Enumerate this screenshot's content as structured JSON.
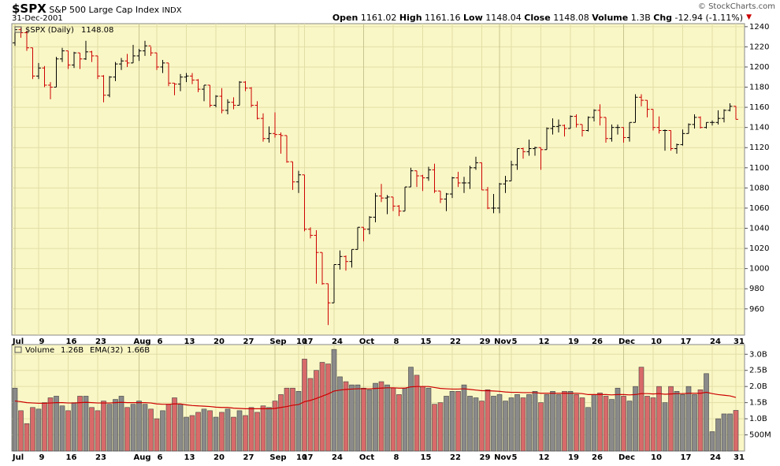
{
  "header": {
    "title": "$SPX",
    "subtitle": "S&P 500 Large Cap Index",
    "exchange": "INDX",
    "date": "31-Dec-2001",
    "open_label": "Open",
    "high_label": "High",
    "low_label": "Low",
    "close_label": "Close",
    "volume_label": "Volume",
    "volume": "1.3B",
    "chg_label": "Chg",
    "chg": "-12.94",
    "chg_pct": "(-1.11%)",
    "copyright": "© StockCharts.com"
  },
  "chart_data": [
    {
      "type": "ohlc",
      "name": "$SPX (Daily)",
      "up_color": "#000000",
      "down_color": "#cc0000",
      "grid": true,
      "categories": [
        "Jul",
        null,
        null,
        null,
        "9",
        null,
        null,
        null,
        null,
        "16",
        null,
        null,
        null,
        null,
        "23",
        null,
        null,
        null,
        null,
        null,
        null,
        "Aug",
        null,
        null,
        "6",
        null,
        null,
        null,
        null,
        "13",
        null,
        null,
        null,
        null,
        "20",
        null,
        null,
        null,
        null,
        "27",
        null,
        null,
        null,
        null,
        "Sep",
        null,
        null,
        null,
        "10",
        "17",
        null,
        null,
        null,
        null,
        "24",
        null,
        null,
        null,
        null,
        "Oct",
        null,
        null,
        null,
        null,
        "8",
        null,
        null,
        null,
        null,
        "15",
        null,
        null,
        null,
        null,
        "22",
        null,
        null,
        null,
        null,
        "29",
        null,
        null,
        "Nov",
        null,
        "5",
        null,
        null,
        null,
        null,
        "12",
        null,
        null,
        null,
        null,
        "19",
        null,
        null,
        null,
        "26",
        null,
        null,
        null,
        null,
        "Dec",
        null,
        null,
        null,
        null,
        "10",
        null,
        null,
        null,
        null,
        "17",
        null,
        null,
        null,
        null,
        "24",
        null,
        null,
        null,
        "31"
      ],
      "open": [
        1224,
        1237,
        1234,
        1219,
        1191,
        1199,
        1182,
        1180,
        1208,
        1216,
        1202,
        1214,
        1208,
        1215,
        1211,
        1191,
        1172,
        1190,
        1203,
        1206,
        1204,
        1211,
        1216,
        1221,
        1214,
        1200,
        1204,
        1184,
        1183,
        1190,
        1191,
        1187,
        1178,
        1182,
        1162,
        1171,
        1157,
        1165,
        1162,
        1185,
        1179,
        1162,
        1149,
        1129,
        1134,
        1133,
        1132,
        1106,
        1086,
        1093,
        1039,
        1033,
        1016,
        985,
        966,
        1004,
        1012,
        1007,
        1019,
        1041,
        1039,
        1051,
        1072,
        1070,
        1071,
        1062,
        1057,
        1081,
        1097,
        1092,
        1090,
        1098,
        1077,
        1069,
        1074,
        1090,
        1085,
        1085,
        1100,
        1105,
        1078,
        1060,
        1060,
        1084,
        1087,
        1103,
        1119,
        1116,
        1119,
        1120,
        1118,
        1139,
        1141,
        1142,
        1139,
        1151,
        1143,
        1137,
        1150,
        1157,
        1150,
        1129,
        1140,
        1140,
        1130,
        1145,
        1170,
        1167,
        1158,
        1140,
        1137,
        1137,
        1119,
        1123,
        1134,
        1143,
        1150,
        1140,
        1145,
        1145,
        1149,
        1157,
        1161.02
      ],
      "high": [
        1240,
        1239,
        1236,
        1219,
        1204,
        1201,
        1185,
        1210,
        1219,
        1216,
        1215,
        1214,
        1226,
        1216,
        1211,
        1192,
        1191,
        1205,
        1209,
        1213,
        1222,
        1218,
        1226,
        1220,
        1214,
        1207,
        1204,
        1184,
        1193,
        1194,
        1194,
        1188,
        1182,
        1182,
        1172,
        1179,
        1168,
        1170,
        1186,
        1186,
        1180,
        1166,
        1154,
        1141,
        1155,
        1135,
        1132,
        1106,
        1097,
        1093,
        1041,
        1038,
        1016,
        985,
        1004,
        1018,
        1013,
        1019,
        1041,
        1041,
        1052,
        1075,
        1084,
        1073,
        1071,
        1063,
        1081,
        1100,
        1097,
        1093,
        1101,
        1104,
        1077,
        1075,
        1091,
        1096,
        1091,
        1102,
        1111,
        1105,
        1081,
        1074,
        1085,
        1092,
        1107,
        1119,
        1120,
        1128,
        1121,
        1120,
        1140,
        1149,
        1148,
        1143,
        1152,
        1153,
        1143,
        1151,
        1158,
        1163,
        1150,
        1143,
        1143,
        1140,
        1145,
        1173,
        1173,
        1167,
        1158,
        1151,
        1138,
        1137,
        1124,
        1138,
        1144,
        1153,
        1151,
        1145,
        1147,
        1157,
        1158,
        1164,
        1161.16
      ],
      "low": [
        1221,
        1229,
        1216,
        1188,
        1188,
        1180,
        1168,
        1180,
        1205,
        1198,
        1199,
        1198,
        1207,
        1205,
        1188,
        1165,
        1170,
        1186,
        1197,
        1200,
        1204,
        1206,
        1211,
        1211,
        1197,
        1194,
        1181,
        1172,
        1176,
        1185,
        1183,
        1175,
        1166,
        1160,
        1160,
        1154,
        1153,
        1158,
        1162,
        1176,
        1160,
        1148,
        1126,
        1125,
        1130,
        1114,
        1105,
        1078,
        1075,
        1037,
        1030,
        985,
        984,
        944,
        966,
        999,
        998,
        1001,
        1019,
        1027,
        1034,
        1046,
        1066,
        1054,
        1057,
        1052,
        1057,
        1081,
        1081,
        1077,
        1087,
        1075,
        1065,
        1057,
        1070,
        1081,
        1075,
        1079,
        1098,
        1078,
        1059,
        1055,
        1055,
        1075,
        1087,
        1098,
        1109,
        1112,
        1112,
        1098,
        1118,
        1133,
        1135,
        1131,
        1139,
        1140,
        1131,
        1136,
        1146,
        1142,
        1125,
        1126,
        1133,
        1125,
        1126,
        1145,
        1161,
        1150,
        1137,
        1134,
        1117,
        1117,
        1114,
        1122,
        1134,
        1139,
        1139,
        1139,
        1142,
        1143,
        1145,
        1156,
        1148.04
      ],
      "close": [
        1237,
        1234,
        1219,
        1191,
        1199,
        1182,
        1180,
        1208,
        1216,
        1202,
        1214,
        1208,
        1215,
        1211,
        1191,
        1172,
        1190,
        1203,
        1206,
        1204,
        1211,
        1216,
        1221,
        1214,
        1200,
        1204,
        1184,
        1183,
        1190,
        1191,
        1187,
        1178,
        1182,
        1162,
        1171,
        1157,
        1165,
        1162,
        1185,
        1179,
        1162,
        1149,
        1129,
        1134,
        1133,
        1132,
        1106,
        1086,
        1093,
        1039,
        1033,
        1016,
        985,
        966,
        1004,
        1012,
        1007,
        1019,
        1041,
        1039,
        1051,
        1072,
        1070,
        1071,
        1062,
        1057,
        1081,
        1097,
        1092,
        1090,
        1098,
        1077,
        1069,
        1074,
        1090,
        1085,
        1085,
        1100,
        1105,
        1078,
        1060,
        1060,
        1084,
        1087,
        1103,
        1119,
        1116,
        1119,
        1120,
        1118,
        1139,
        1141,
        1142,
        1139,
        1151,
        1143,
        1137,
        1150,
        1157,
        1150,
        1129,
        1140,
        1140,
        1130,
        1145,
        1170,
        1167,
        1158,
        1140,
        1137,
        1137,
        1119,
        1123,
        1134,
        1143,
        1150,
        1140,
        1145,
        1145,
        1149,
        1157,
        1161,
        1148.08
      ],
      "ylim": [
        934,
        1243
      ],
      "yticks": [
        960,
        980,
        1000,
        1020,
        1040,
        1060,
        1080,
        1100,
        1120,
        1140,
        1160,
        1180,
        1200,
        1220,
        1240
      ]
    },
    {
      "type": "bar",
      "name": "Volume",
      "last_label": "1.26B",
      "up_color": "#8a8a8a",
      "down_color": "#d86a6a",
      "grid": true,
      "categories": [
        "Jul",
        null,
        null,
        null,
        "9",
        null,
        null,
        null,
        null,
        "16",
        null,
        null,
        null,
        null,
        "23",
        null,
        null,
        null,
        null,
        null,
        null,
        "Aug",
        null,
        null,
        "6",
        null,
        null,
        null,
        null,
        "13",
        null,
        null,
        null,
        null,
        "20",
        null,
        null,
        null,
        null,
        "27",
        null,
        null,
        null,
        null,
        "Sep",
        null,
        null,
        null,
        "10",
        "17",
        null,
        null,
        null,
        null,
        "24",
        null,
        null,
        null,
        null,
        "Oct",
        null,
        null,
        null,
        null,
        "8",
        null,
        null,
        null,
        null,
        "15",
        null,
        null,
        null,
        null,
        "22",
        null,
        null,
        null,
        null,
        "29",
        null,
        null,
        "Nov",
        null,
        "5",
        null,
        null,
        null,
        null,
        "12",
        null,
        null,
        null,
        null,
        "19",
        null,
        null,
        null,
        "26",
        null,
        null,
        null,
        null,
        "Dec",
        null,
        null,
        null,
        null,
        "10",
        null,
        null,
        null,
        null,
        "17",
        null,
        null,
        null,
        null,
        "24",
        null,
        null,
        null,
        "31"
      ],
      "values": [
        1.95,
        1.25,
        0.85,
        1.35,
        1.3,
        1.5,
        1.65,
        1.7,
        1.4,
        1.25,
        1.5,
        1.7,
        1.7,
        1.35,
        1.25,
        1.55,
        1.45,
        1.6,
        1.7,
        1.35,
        1.45,
        1.55,
        1.45,
        1.3,
        1.0,
        1.25,
        1.45,
        1.65,
        1.45,
        1.05,
        1.1,
        1.2,
        1.3,
        1.25,
        1.05,
        1.2,
        1.3,
        1.05,
        1.25,
        1.1,
        1.35,
        1.2,
        1.4,
        1.35,
        1.55,
        1.75,
        1.95,
        1.95,
        1.85,
        2.85,
        2.25,
        2.5,
        2.75,
        2.7,
        3.15,
        2.3,
        2.15,
        2.05,
        2.05,
        1.95,
        1.9,
        2.1,
        2.15,
        2.05,
        1.95,
        1.75,
        1.95,
        2.6,
        2.35,
        2.0,
        1.95,
        1.45,
        1.5,
        1.7,
        1.85,
        1.85,
        2.05,
        1.7,
        1.65,
        1.55,
        1.9,
        1.7,
        1.75,
        1.55,
        1.65,
        1.75,
        1.65,
        1.75,
        1.85,
        1.5,
        1.75,
        1.85,
        1.75,
        1.85,
        1.85,
        1.75,
        1.65,
        1.35,
        1.75,
        1.8,
        1.7,
        1.6,
        1.95,
        1.7,
        1.55,
        2.0,
        2.6,
        1.7,
        1.65,
        2.0,
        1.5,
        2.0,
        1.85,
        1.75,
        2.0,
        1.75,
        1.9,
        2.4,
        0.6,
        1.0,
        1.15,
        1.15,
        1.26
      ],
      "ema": {
        "name": "EMA(32)",
        "color": "#cc0000",
        "last_label": "1.66B",
        "values": [
          1.55,
          1.53,
          1.5,
          1.49,
          1.48,
          1.48,
          1.49,
          1.5,
          1.5,
          1.49,
          1.49,
          1.5,
          1.51,
          1.5,
          1.49,
          1.49,
          1.49,
          1.5,
          1.51,
          1.5,
          1.5,
          1.5,
          1.5,
          1.49,
          1.46,
          1.45,
          1.45,
          1.46,
          1.46,
          1.43,
          1.41,
          1.4,
          1.39,
          1.38,
          1.36,
          1.35,
          1.35,
          1.33,
          1.32,
          1.31,
          1.31,
          1.31,
          1.31,
          1.31,
          1.32,
          1.35,
          1.38,
          1.42,
          1.44,
          1.53,
          1.57,
          1.63,
          1.7,
          1.77,
          1.86,
          1.89,
          1.91,
          1.92,
          1.93,
          1.93,
          1.93,
          1.94,
          1.95,
          1.96,
          1.96,
          1.95,
          1.95,
          1.99,
          2.0,
          2.0,
          2.0,
          1.97,
          1.94,
          1.93,
          1.92,
          1.92,
          1.93,
          1.91,
          1.89,
          1.87,
          1.87,
          1.86,
          1.85,
          1.83,
          1.82,
          1.82,
          1.81,
          1.81,
          1.81,
          1.79,
          1.79,
          1.79,
          1.79,
          1.79,
          1.79,
          1.79,
          1.78,
          1.75,
          1.75,
          1.75,
          1.75,
          1.74,
          1.75,
          1.75,
          1.74,
          1.75,
          1.78,
          1.78,
          1.77,
          1.78,
          1.76,
          1.77,
          1.78,
          1.78,
          1.79,
          1.79,
          1.79,
          1.82,
          1.78,
          1.75,
          1.73,
          1.71,
          1.66
        ]
      },
      "ylim": [
        0,
        3.3
      ],
      "yticks": [
        {
          "value": 0.5,
          "label": "500M"
        },
        {
          "value": 1.0,
          "label": "1.0B"
        },
        {
          "value": 1.5,
          "label": "1.5B"
        },
        {
          "value": 2.0,
          "label": "2.0B"
        },
        {
          "value": 2.5,
          "label": "2.5B"
        },
        {
          "value": 3.0,
          "label": "3.0B"
        }
      ]
    }
  ]
}
